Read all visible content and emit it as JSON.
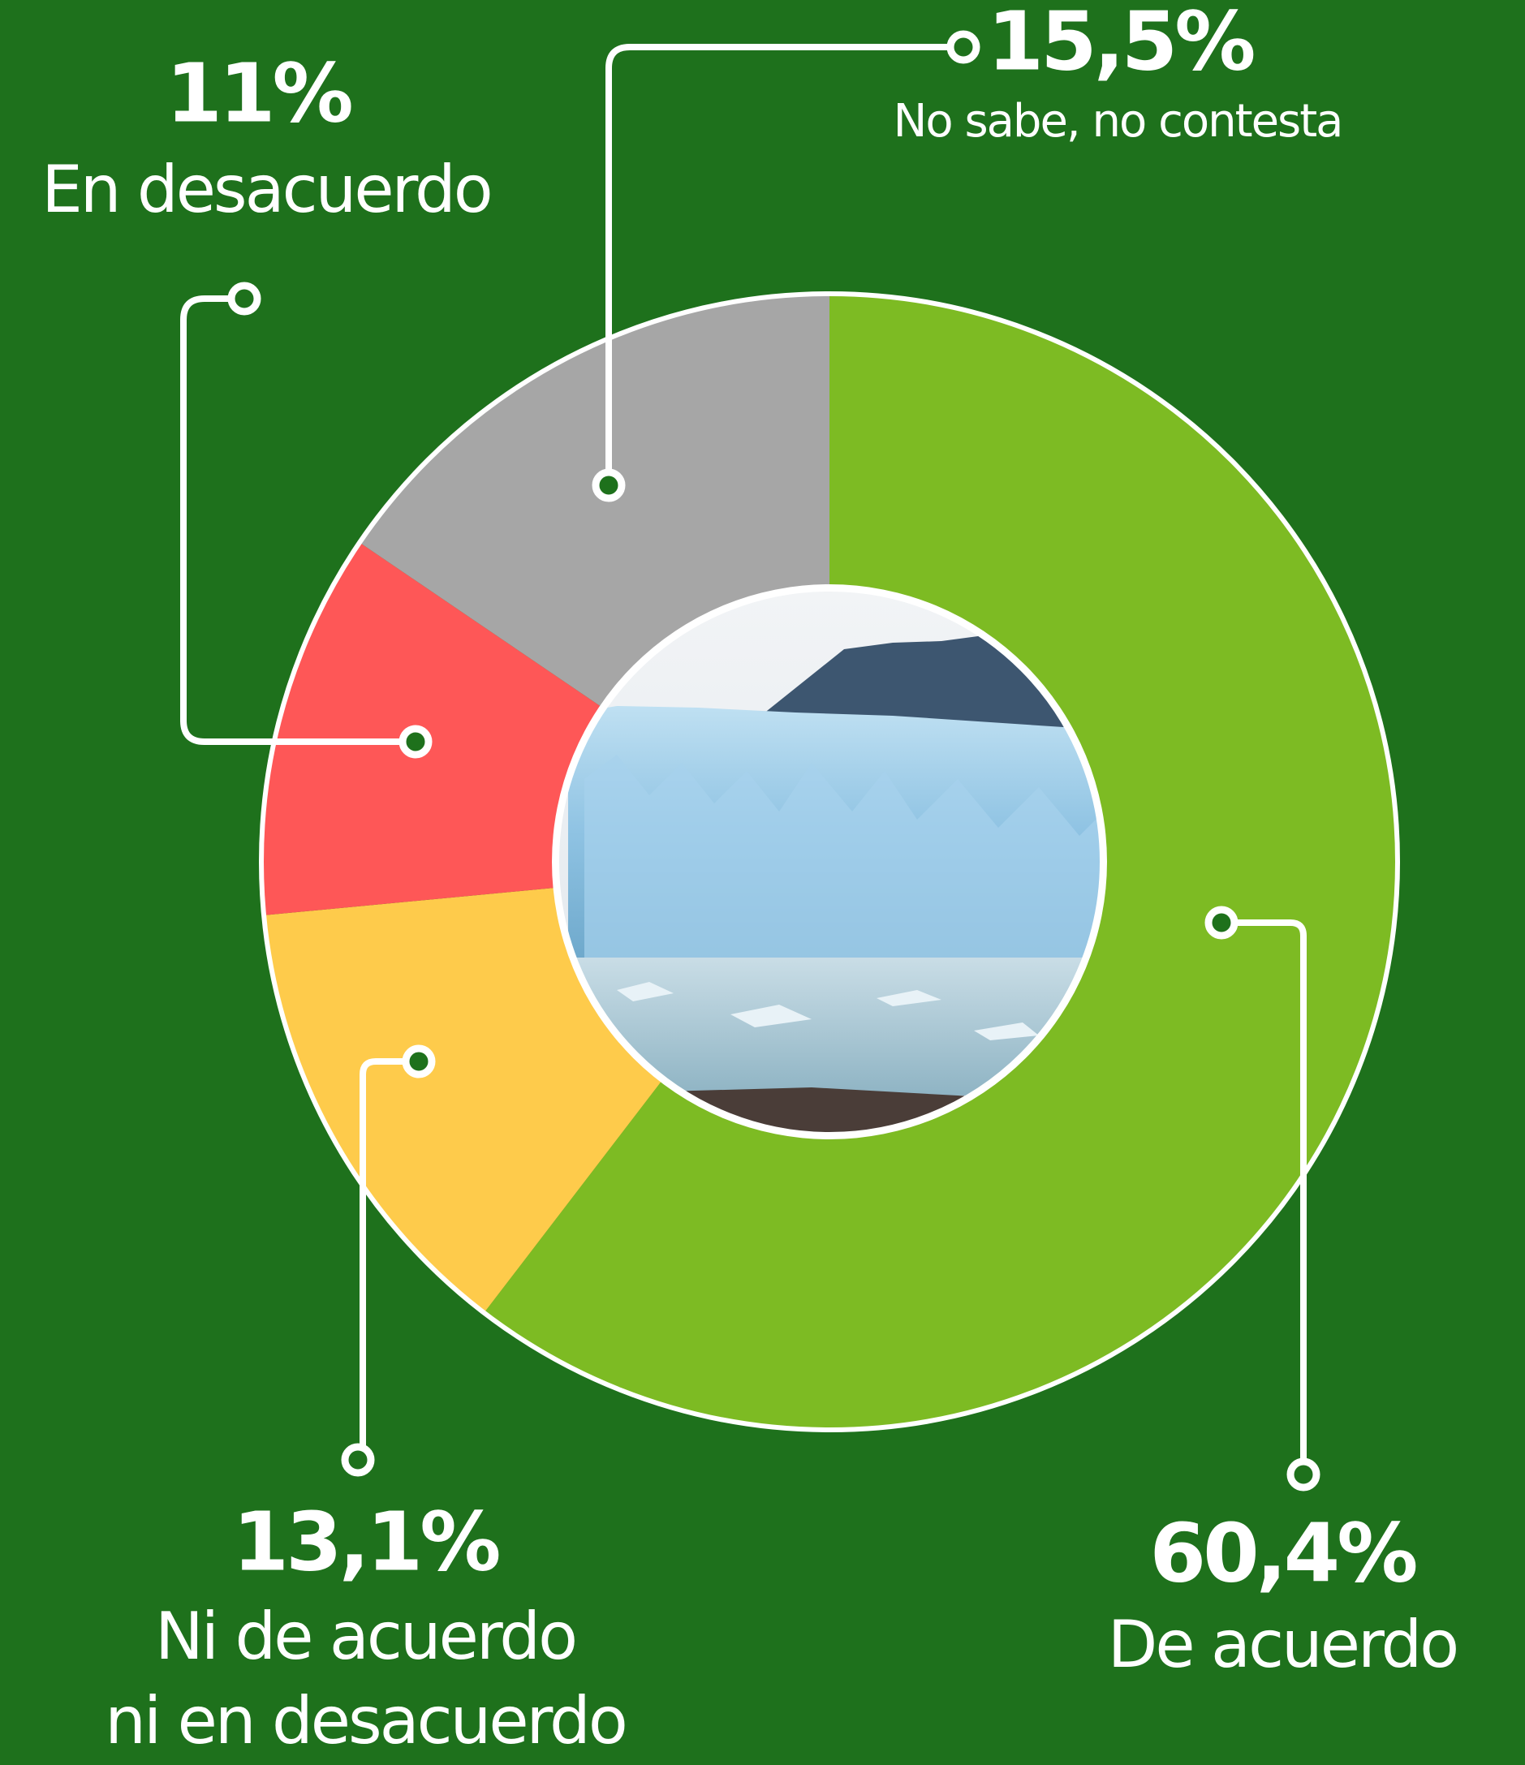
{
  "chart_data": {
    "type": "pie",
    "categories": [
      "De acuerdo",
      "Ni de acuerdo\nni en desacuerdo",
      "En desacuerdo",
      "No sabe, no contesta"
    ],
    "values": [
      60.4,
      13.1,
      11,
      15.5
    ],
    "value_labels": [
      "60,4%",
      "13,1%",
      "11%",
      "15,5%"
    ],
    "colors": [
      "#7dbb23",
      "#fecb4b",
      "#fe5757",
      "#a6a6a6"
    ]
  }
}
